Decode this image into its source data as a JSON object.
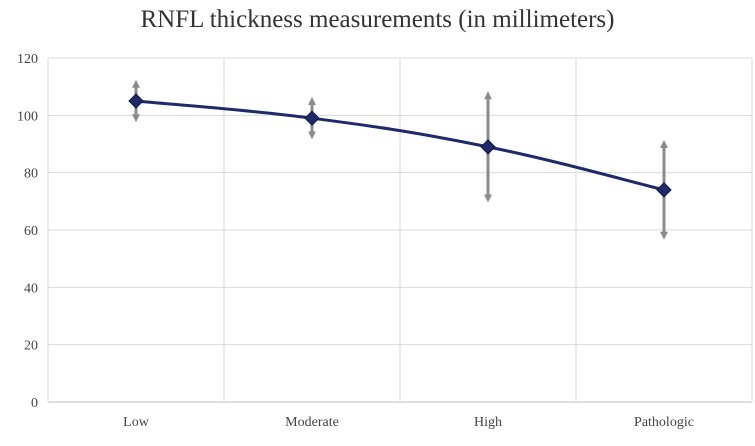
{
  "chart_data": {
    "type": "line",
    "title": "RNFL thickness measurements (in millimeters)",
    "xlabel": "",
    "ylabel": "",
    "categories": [
      "Low",
      "Moderate",
      "High",
      "Pathologic"
    ],
    "series": [
      {
        "values": [
          105,
          99,
          89,
          74
        ],
        "error_low": [
          99,
          93,
          71,
          58
        ],
        "error_high": [
          111,
          105,
          107,
          90
        ]
      }
    ],
    "ylim": [
      0,
      120
    ],
    "yticks": [
      0,
      20,
      40,
      60,
      80,
      100,
      120
    ],
    "grid": true,
    "legend": "none",
    "colors": {
      "line": "#1f2a6b",
      "marker": "#1f2a6b",
      "error_bar": "#8c8c8c",
      "grid": "#d9d9d9",
      "tick_text": "#444444"
    }
  }
}
